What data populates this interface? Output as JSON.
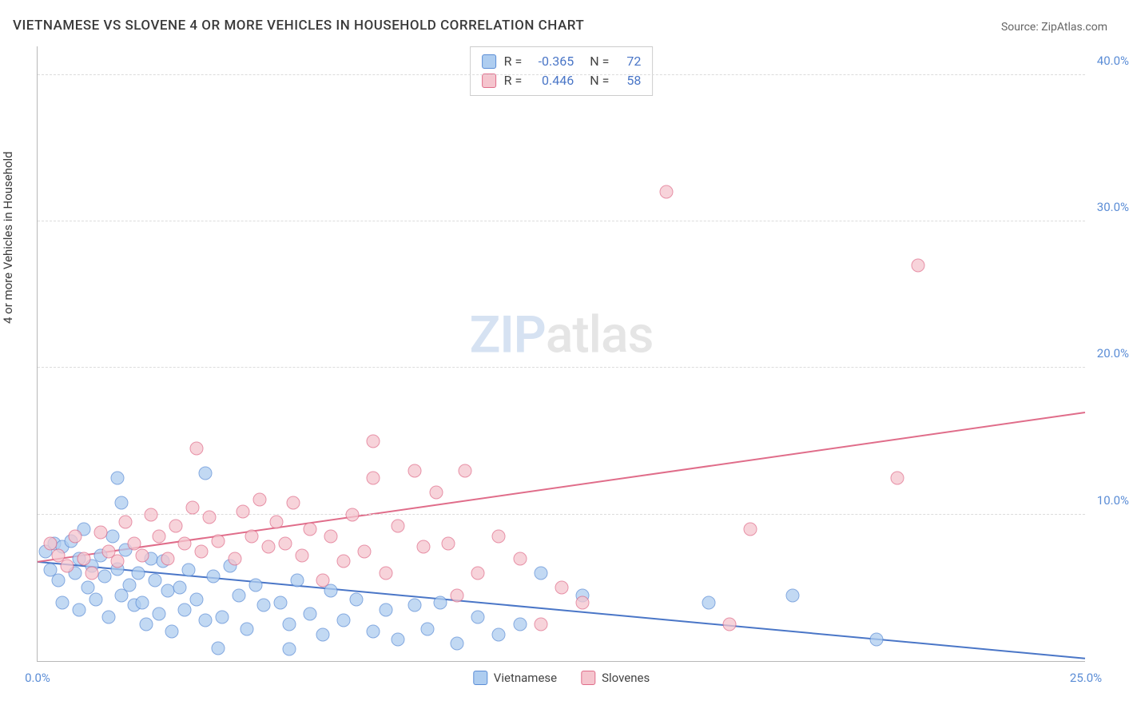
{
  "title": "VIETNAMESE VS SLOVENE 4 OR MORE VEHICLES IN HOUSEHOLD CORRELATION CHART",
  "source_label": "Source:",
  "source_name": "ZipAtlas.com",
  "ylabel": "4 or more Vehicles in Household",
  "watermark_zip": "ZIP",
  "watermark_atlas": "atlas",
  "chart": {
    "type": "scatter",
    "xlim": [
      0,
      25
    ],
    "ylim": [
      0,
      42
    ],
    "xticks": [
      {
        "v": 0,
        "label": "0.0%"
      },
      {
        "v": 25,
        "label": "25.0%"
      }
    ],
    "yticks": [
      {
        "v": 10,
        "label": "10.0%"
      },
      {
        "v": 20,
        "label": "20.0%"
      },
      {
        "v": 30,
        "label": "30.0%"
      },
      {
        "v": 40,
        "label": "40.0%"
      }
    ],
    "series": [
      {
        "name": "Vietnamese",
        "fill": "#aecdf0",
        "stroke": "#5b8dd6",
        "line_color": "#4a76c7",
        "R": "-0.365",
        "N": "72",
        "trend": {
          "x1": 0,
          "y1": 6.8,
          "x2": 25,
          "y2": 0.2
        },
        "points": [
          [
            0.2,
            7.5
          ],
          [
            0.3,
            6.2
          ],
          [
            0.4,
            8.0
          ],
          [
            0.5,
            5.5
          ],
          [
            0.6,
            7.8
          ],
          [
            0.6,
            4.0
          ],
          [
            0.8,
            8.2
          ],
          [
            0.9,
            6.0
          ],
          [
            1.0,
            7.0
          ],
          [
            1.0,
            3.5
          ],
          [
            1.1,
            9.0
          ],
          [
            1.2,
            5.0
          ],
          [
            1.3,
            6.5
          ],
          [
            1.4,
            4.2
          ],
          [
            1.5,
            7.2
          ],
          [
            1.6,
            5.8
          ],
          [
            1.7,
            3.0
          ],
          [
            1.8,
            8.5
          ],
          [
            1.9,
            6.3
          ],
          [
            2.0,
            4.5
          ],
          [
            2.1,
            7.6
          ],
          [
            2.2,
            5.2
          ],
          [
            2.3,
            3.8
          ],
          [
            2.4,
            6.0
          ],
          [
            2.5,
            4.0
          ],
          [
            2.6,
            2.5
          ],
          [
            2.7,
            7.0
          ],
          [
            2.8,
            5.5
          ],
          [
            2.9,
            3.2
          ],
          [
            3.0,
            6.8
          ],
          [
            3.1,
            4.8
          ],
          [
            3.2,
            2.0
          ],
          [
            1.9,
            12.5
          ],
          [
            2.0,
            10.8
          ],
          [
            3.4,
            5.0
          ],
          [
            3.5,
            3.5
          ],
          [
            3.6,
            6.2
          ],
          [
            3.8,
            4.2
          ],
          [
            4.0,
            2.8
          ],
          [
            4.2,
            5.8
          ],
          [
            4.4,
            3.0
          ],
          [
            4.6,
            6.5
          ],
          [
            4.8,
            4.5
          ],
          [
            5.0,
            2.2
          ],
          [
            5.2,
            5.2
          ],
          [
            5.4,
            3.8
          ],
          [
            4.0,
            12.8
          ],
          [
            5.8,
            4.0
          ],
          [
            6.0,
            2.5
          ],
          [
            6.2,
            5.5
          ],
          [
            6.5,
            3.2
          ],
          [
            6.8,
            1.8
          ],
          [
            7.0,
            4.8
          ],
          [
            7.3,
            2.8
          ],
          [
            7.6,
            4.2
          ],
          [
            8.0,
            2.0
          ],
          [
            8.3,
            3.5
          ],
          [
            8.6,
            1.5
          ],
          [
            9.0,
            3.8
          ],
          [
            9.3,
            2.2
          ],
          [
            9.6,
            4.0
          ],
          [
            10.0,
            1.2
          ],
          [
            10.5,
            3.0
          ],
          [
            11.0,
            1.8
          ],
          [
            11.5,
            2.5
          ],
          [
            12.0,
            6.0
          ],
          [
            13.0,
            4.5
          ],
          [
            16.0,
            4.0
          ],
          [
            18.0,
            4.5
          ],
          [
            20.0,
            1.5
          ],
          [
            6.0,
            0.8
          ],
          [
            4.3,
            0.9
          ]
        ]
      },
      {
        "name": "Slovenes",
        "fill": "#f5c5ce",
        "stroke": "#e06d8a",
        "line_color": "#e06d8a",
        "R": "0.446",
        "N": "58",
        "trend": {
          "x1": 0,
          "y1": 6.8,
          "x2": 25,
          "y2": 17.0
        },
        "points": [
          [
            0.3,
            8.0
          ],
          [
            0.5,
            7.2
          ],
          [
            0.7,
            6.5
          ],
          [
            0.9,
            8.5
          ],
          [
            1.1,
            7.0
          ],
          [
            1.3,
            6.0
          ],
          [
            1.5,
            8.8
          ],
          [
            1.7,
            7.5
          ],
          [
            1.9,
            6.8
          ],
          [
            2.1,
            9.5
          ],
          [
            2.3,
            8.0
          ],
          [
            2.5,
            7.2
          ],
          [
            2.7,
            10.0
          ],
          [
            2.9,
            8.5
          ],
          [
            3.1,
            7.0
          ],
          [
            3.3,
            9.2
          ],
          [
            3.5,
            8.0
          ],
          [
            3.7,
            10.5
          ],
          [
            3.9,
            7.5
          ],
          [
            4.1,
            9.8
          ],
          [
            4.3,
            8.2
          ],
          [
            3.8,
            14.5
          ],
          [
            4.7,
            7.0
          ],
          [
            4.9,
            10.2
          ],
          [
            5.1,
            8.5
          ],
          [
            5.3,
            11.0
          ],
          [
            5.5,
            7.8
          ],
          [
            5.7,
            9.5
          ],
          [
            5.9,
            8.0
          ],
          [
            6.1,
            10.8
          ],
          [
            6.3,
            7.2
          ],
          [
            6.5,
            9.0
          ],
          [
            6.8,
            5.5
          ],
          [
            7.0,
            8.5
          ],
          [
            7.3,
            6.8
          ],
          [
            7.5,
            10.0
          ],
          [
            7.8,
            7.5
          ],
          [
            8.0,
            12.5
          ],
          [
            8.3,
            6.0
          ],
          [
            8.6,
            9.2
          ],
          [
            8.0,
            15.0
          ],
          [
            9.2,
            7.8
          ],
          [
            9.5,
            11.5
          ],
          [
            9.8,
            8.0
          ],
          [
            10.2,
            13.0
          ],
          [
            9.0,
            13.0
          ],
          [
            11.0,
            8.5
          ],
          [
            11.5,
            7.0
          ],
          [
            12.0,
            2.5
          ],
          [
            13.0,
            4.0
          ],
          [
            15.0,
            32.0
          ],
          [
            16.5,
            2.5
          ],
          [
            17.0,
            9.0
          ],
          [
            21.0,
            27.0
          ],
          [
            20.5,
            12.5
          ],
          [
            10.0,
            4.5
          ],
          [
            10.5,
            6.0
          ],
          [
            12.5,
            5.0
          ]
        ]
      }
    ]
  },
  "legend_bottom": [
    {
      "label": "Vietnamese",
      "fill": "#aecdf0",
      "stroke": "#5b8dd6"
    },
    {
      "label": "Slovenes",
      "fill": "#f5c5ce",
      "stroke": "#e06d8a"
    }
  ]
}
